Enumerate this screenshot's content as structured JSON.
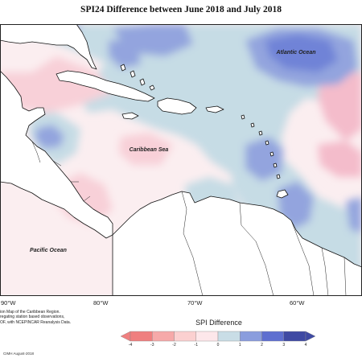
{
  "title": "SPI24 Difference between June 2018 and July 2018",
  "labels": {
    "atlantic": "Atlantic Ocean",
    "caribbean": "Caribbean Sea",
    "pacific": "Pacific Ocean"
  },
  "lon_labels": [
    "90°W",
    "80°W",
    "70°W",
    "60°W"
  ],
  "note_lines": [
    "ion Map of the Caribbean Region.",
    "regating station based observations,",
    "OF, with NCEPINCAR Reanalysis Data."
  ],
  "credit": "CIMH August-2018",
  "legend": {
    "title": "SPI Difference",
    "ticks": [
      "-4",
      "-3",
      "-2",
      "-1",
      "0",
      "1",
      "2",
      "3",
      "4"
    ],
    "colors": [
      "#ef7f7f",
      "#f6a9a9",
      "#fbd0d0",
      "#fde7ea",
      "#ffffff",
      "#c9dde6",
      "#8a9ddd",
      "#5e6fd0",
      "#3f4aa3"
    ]
  },
  "colors": {
    "land": "#ffffff",
    "neutral": "#fbeef0",
    "wet_light": "#c6dce5",
    "wet_mid": "#93a4de",
    "wet_dark": "#6f83d7",
    "dry_light": "#f8d0d8",
    "dry_mid": "#f4bccb",
    "coast": "#111111"
  }
}
